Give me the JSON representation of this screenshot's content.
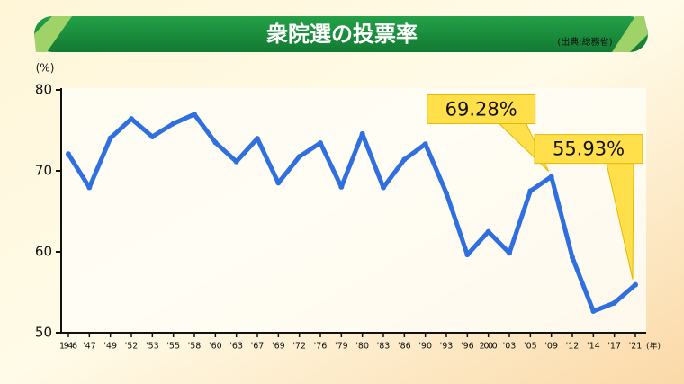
{
  "chart_data": {
    "type": "line",
    "title": "衆院選の投票率",
    "source": "(出典:総務省)",
    "y_unit": "(%)",
    "x_unit": "(年)",
    "categories": [
      "1946",
      "'47",
      "'49",
      "'52",
      "'53",
      "'55",
      "'58",
      "'60",
      "'63",
      "'67",
      "'69",
      "'72",
      "'76",
      "'79",
      "'80",
      "'83",
      "'86",
      "'90",
      "'93",
      "'96",
      "2000",
      "'03",
      "'05",
      "'09",
      "'12",
      "'14",
      "'17",
      "'21"
    ],
    "values": [
      72.08,
      67.95,
      74.04,
      76.43,
      74.22,
      75.84,
      76.99,
      73.51,
      71.14,
      73.99,
      68.51,
      71.76,
      73.45,
      68.01,
      74.57,
      67.94,
      71.4,
      73.31,
      67.26,
      59.65,
      62.49,
      59.86,
      67.51,
      69.28,
      59.32,
      52.66,
      53.68,
      55.93
    ],
    "value_labels": [
      null,
      null,
      null,
      null,
      null,
      null,
      null,
      null,
      null,
      null,
      null,
      null,
      null,
      null,
      null,
      null,
      null,
      null,
      null,
      null,
      null,
      null,
      null,
      "69.28%",
      null,
      null,
      null,
      "55.93%"
    ],
    "color": "#2f6fe0",
    "ylim": [
      50,
      80
    ],
    "yticks": [
      50,
      60,
      70,
      80
    ]
  }
}
